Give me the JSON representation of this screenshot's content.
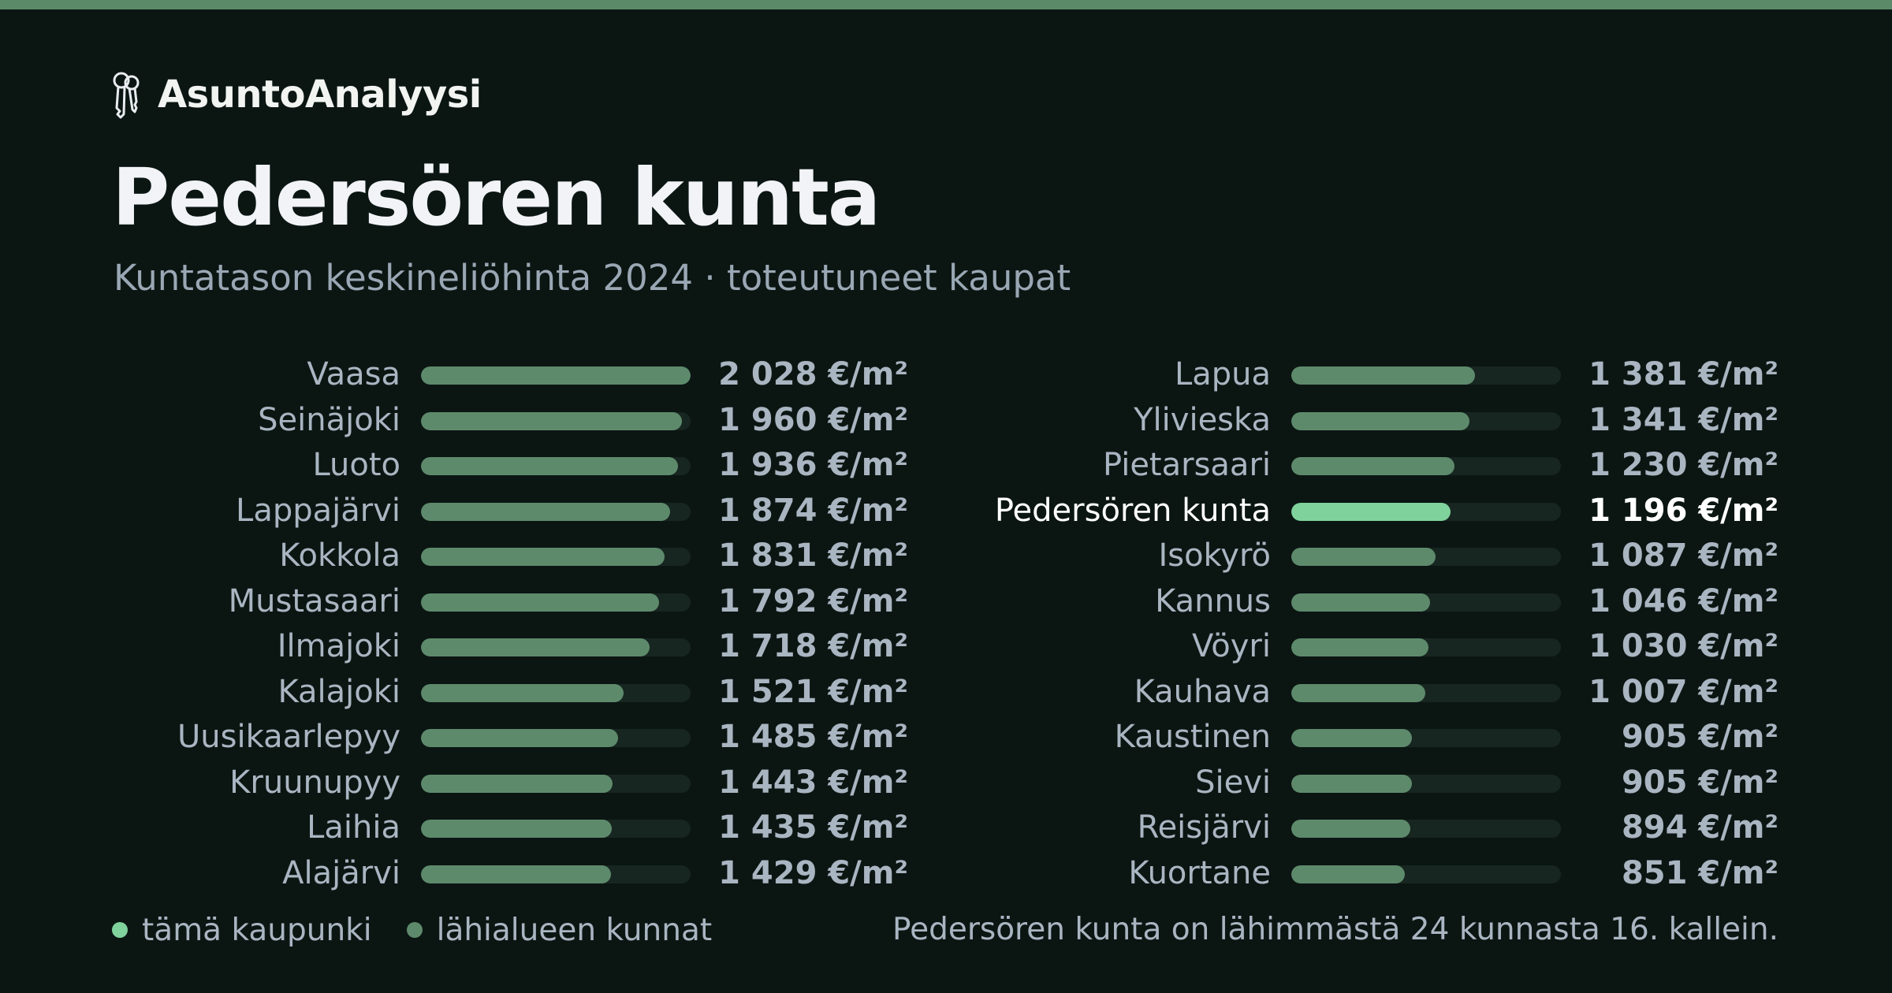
{
  "brand": {
    "name": "AsuntoAnalyysi",
    "icon": "keys-icon"
  },
  "title": "Pedersören kunta",
  "subtitle": "Kuntatason keskineliöhinta 2024 · toteutuneet kaupat",
  "colors": {
    "background": "#0b1613",
    "accent": "#5a8a68",
    "bar": "#5e8a6c",
    "highlight": "#7fd29c",
    "track": "#172620"
  },
  "chart_data": {
    "type": "bar",
    "orientation": "horizontal",
    "unit": "€/m²",
    "xlim": [
      0,
      2028
    ],
    "highlight": "Pedersören kunta",
    "categories": [
      "Vaasa",
      "Seinäjoki",
      "Luoto",
      "Lappajärvi",
      "Kokkola",
      "Mustasaari",
      "Ilmajoki",
      "Kalajoki",
      "Uusikaarlepyy",
      "Kruunupyy",
      "Laihia",
      "Alajärvi",
      "Lapua",
      "Ylivieska",
      "Pietarsaari",
      "Pedersören kunta",
      "Isokyrö",
      "Kannus",
      "Vöyri",
      "Kauhava",
      "Kaustinen",
      "Sievi",
      "Reisjärvi",
      "Kuortane"
    ],
    "values": [
      2028,
      1960,
      1936,
      1874,
      1831,
      1792,
      1718,
      1521,
      1485,
      1443,
      1435,
      1429,
      1381,
      1341,
      1230,
      1196,
      1087,
      1046,
      1030,
      1007,
      905,
      905,
      894,
      851
    ],
    "value_labels": [
      "2 028 €/m²",
      "1 960 €/m²",
      "1 936 €/m²",
      "1 874 €/m²",
      "1 831 €/m²",
      "1 792 €/m²",
      "1 718 €/m²",
      "1 521 €/m²",
      "1 485 €/m²",
      "1 443 €/m²",
      "1 435 €/m²",
      "1 429 €/m²",
      "1 381 €/m²",
      "1 341 €/m²",
      "1 230 €/m²",
      "1 196 €/m²",
      "1 087 €/m²",
      "1 046 €/m²",
      "1 030 €/m²",
      "1 007 €/m²",
      "905 €/m²",
      "905 €/m²",
      "894 €/m²",
      "851 €/m²"
    ],
    "legend": [
      {
        "label": "tämä kaupunki",
        "color": "#7fd29c"
      },
      {
        "label": "lähialueen kunnat",
        "color": "#5e8a6c"
      }
    ],
    "legend_position": "bottom-left"
  },
  "footnote": "Pedersören kunta on lähimmästä 24 kunnasta 16. kallein."
}
